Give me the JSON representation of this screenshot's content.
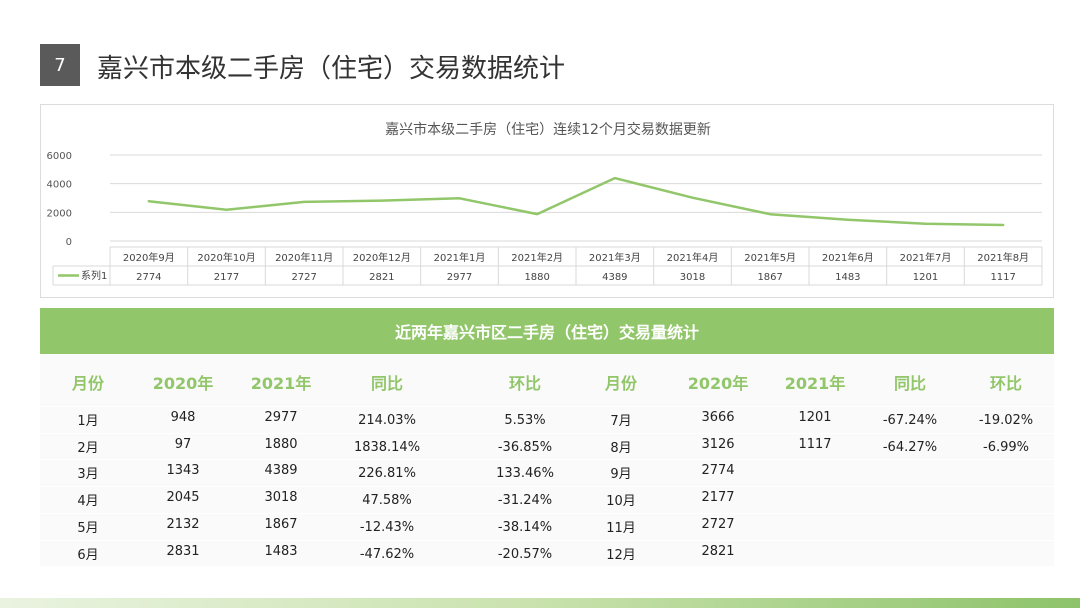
{
  "header": {
    "slide_number": "7",
    "title": "嘉兴市本级二手房（住宅）交易数据统计"
  },
  "chart_data": {
    "type": "line",
    "title": "嘉兴市本级二手房（住宅）连续12个月交易数据更新",
    "categories": [
      "2020年9月",
      "2020年10月",
      "2020年11月",
      "2020年12月",
      "2021年1月",
      "2021年2月",
      "2021年3月",
      "2021年4月",
      "2021年5月",
      "2021年6月",
      "2021年7月",
      "2021年8月"
    ],
    "series": [
      {
        "name": "系列1",
        "values": [
          2774,
          2177,
          2727,
          2821,
          2977,
          1880,
          4389,
          3018,
          1867,
          1483,
          1201,
          1117
        ]
      }
    ],
    "y_ticks": [
      "6000",
      "4000",
      "2000",
      "0"
    ],
    "ylim": [
      0,
      6000
    ],
    "grid": true,
    "legend": "data-table",
    "color": "#92c66a"
  },
  "table": {
    "title": "近两年嘉兴市区二手房（住宅）交易量统计",
    "headers": [
      "月份",
      "2020年",
      "2021年",
      "同比",
      "环比",
      "月份",
      "2020年",
      "2021年",
      "同比",
      "环比"
    ],
    "rows": [
      [
        "1月",
        "948",
        "2977",
        "214.03%",
        "5.53%",
        "7月",
        "3666",
        "1201",
        "-67.24%",
        "-19.02%"
      ],
      [
        "2月",
        "97",
        "1880",
        "1838.14%",
        "-36.85%",
        "8月",
        "3126",
        "1117",
        "-64.27%",
        "-6.99%"
      ],
      [
        "3月",
        "1343",
        "4389",
        "226.81%",
        "133.46%",
        "9月",
        "2774",
        "",
        "",
        ""
      ],
      [
        "4月",
        "2045",
        "3018",
        "47.58%",
        "-31.24%",
        "10月",
        "2177",
        "",
        "",
        ""
      ],
      [
        "5月",
        "2132",
        "1867",
        "-12.43%",
        "-38.14%",
        "11月",
        "2727",
        "",
        "",
        ""
      ],
      [
        "6月",
        "2831",
        "1483",
        "-47.62%",
        "-20.57%",
        "12月",
        "2821",
        "",
        "",
        ""
      ]
    ]
  },
  "colors": {
    "accent": "#92c66a",
    "slide_number_bg": "#5a5a5a"
  }
}
